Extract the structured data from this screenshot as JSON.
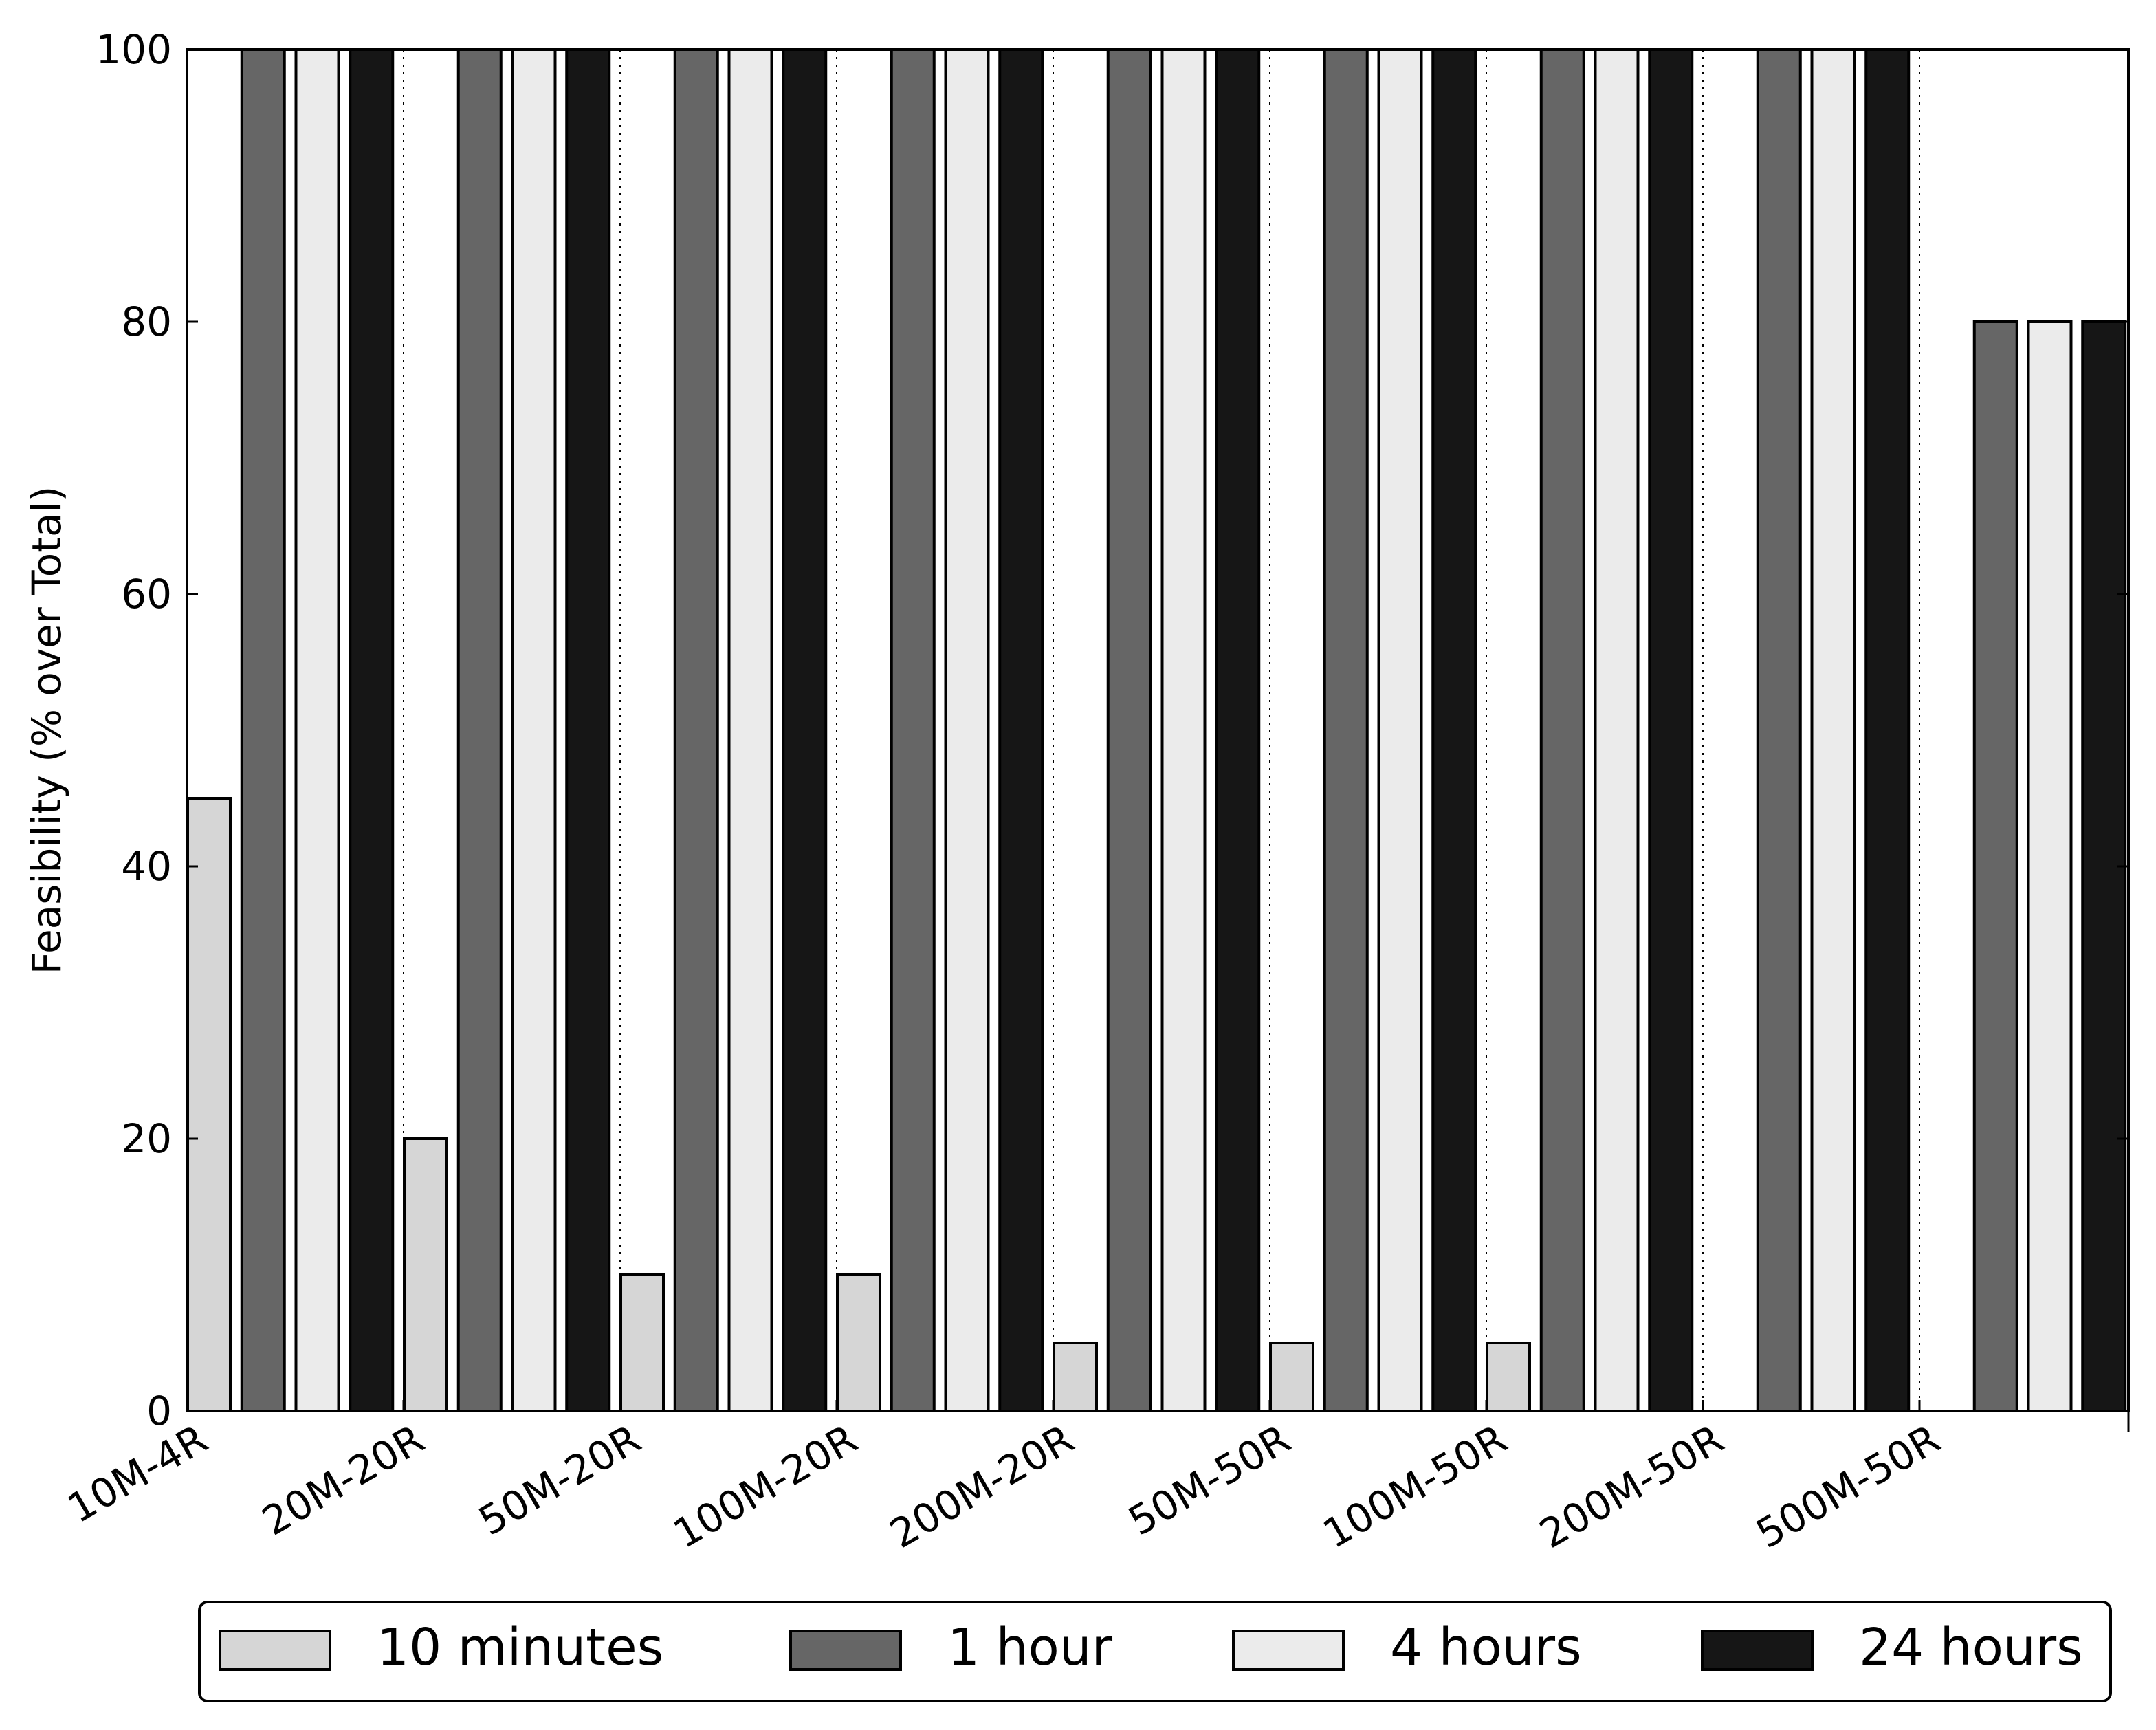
{
  "chart_data": {
    "type": "bar",
    "title": "",
    "xlabel": "",
    "ylabel": "Feasibility (% over Total)",
    "ylim": [
      0,
      100
    ],
    "yticks": [
      0,
      20,
      40,
      60,
      80,
      100
    ],
    "categories": [
      "10M-4R",
      "20M-20R",
      "50M-20R",
      "100M-20R",
      "200M-20R",
      "50M-50R",
      "100M-50R",
      "200M-50R",
      "500M-50R"
    ],
    "series": [
      {
        "name": "10 minutes",
        "color": "#d6d6d6",
        "values": [
          45,
          20,
          10,
          10,
          5,
          5,
          5,
          0,
          0
        ]
      },
      {
        "name": "1 hour",
        "color": "#666666",
        "values": [
          100,
          100,
          100,
          100,
          100,
          100,
          100,
          100,
          80
        ]
      },
      {
        "name": "4 hours",
        "color": "#ebebeb",
        "values": [
          100,
          100,
          100,
          100,
          100,
          100,
          100,
          100,
          80
        ]
      },
      {
        "name": "24 hours",
        "color": "#161616",
        "values": [
          100,
          100,
          100,
          100,
          100,
          100,
          100,
          100,
          80
        ]
      }
    ],
    "grid": "vertical dotted separators between groups",
    "legend_position": "bottom"
  }
}
